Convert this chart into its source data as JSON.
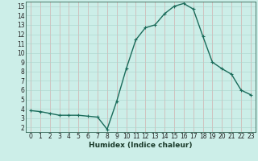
{
  "x": [
    0,
    1,
    2,
    3,
    4,
    5,
    6,
    7,
    8,
    9,
    10,
    11,
    12,
    13,
    14,
    15,
    16,
    17,
    18,
    19,
    20,
    21,
    22,
    23
  ],
  "y": [
    3.8,
    3.7,
    3.5,
    3.3,
    3.3,
    3.3,
    3.2,
    3.1,
    1.8,
    4.8,
    8.3,
    11.4,
    12.7,
    13.0,
    14.2,
    15.0,
    15.3,
    14.7,
    11.8,
    9.0,
    8.3,
    7.7,
    6.0,
    5.5
  ],
  "line_color": "#1a6b5a",
  "marker": "+",
  "marker_size": 3,
  "xlabel": "Humidex (Indice chaleur)",
  "bg_color": "#cceee8",
  "grid_color": "#aad4cc",
  "xlim": [
    -0.5,
    23.5
  ],
  "ylim": [
    1.5,
    15.5
  ],
  "yticks": [
    2,
    3,
    4,
    5,
    6,
    7,
    8,
    9,
    10,
    11,
    12,
    13,
    14,
    15
  ],
  "xticks": [
    0,
    1,
    2,
    3,
    4,
    5,
    6,
    7,
    8,
    9,
    10,
    11,
    12,
    13,
    14,
    15,
    16,
    17,
    18,
    19,
    20,
    21,
    22,
    23
  ],
  "tick_label_fontsize": 5.5,
  "xlabel_fontsize": 6.5,
  "line_width": 1.0
}
